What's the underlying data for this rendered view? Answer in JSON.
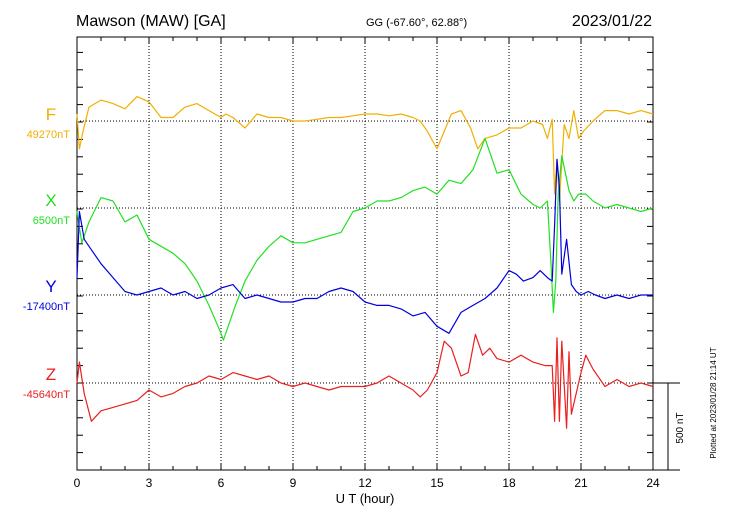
{
  "header": {
    "station": "Mawson (MAW)  [GA]",
    "coords": "GG (-67.60°,  62.88°)",
    "date": "2023/01/22"
  },
  "footer": {
    "plotted": "Plotted at 2023/01/28 21:14 UT"
  },
  "chart_data": {
    "type": "line",
    "title": "Mawson (MAW)  [GA]",
    "xlabel": "U T (hour)",
    "ylabel": "",
    "xlim": [
      0,
      24
    ],
    "x_ticks": [
      "0",
      "3",
      "6",
      "9",
      "12",
      "15",
      "18",
      "21",
      "24"
    ],
    "scale_bar_label": "500 nT",
    "scale_bar_nT": 500,
    "grid": "dotted vertical every 3 h; dotted baseline per component",
    "series": [
      {
        "name": "F",
        "baseline_label": "49270nT",
        "baseline_nT": 49270,
        "color": "#f0b000",
        "x": [
          0,
          0.1,
          0.25,
          0.5,
          1,
          1.5,
          2,
          2.5,
          3,
          3.5,
          4,
          4.5,
          5,
          5.5,
          6,
          6.2,
          6.5,
          7,
          7.5,
          8,
          8.5,
          9,
          9.5,
          10,
          10.5,
          11,
          11.5,
          12,
          12.5,
          13,
          13.5,
          14,
          14.3,
          14.6,
          15,
          15.3,
          15.6,
          16,
          16.4,
          16.7,
          17,
          17.5,
          18,
          18.5,
          19,
          19.4,
          19.6,
          19.8,
          19.9,
          20.0,
          20.1,
          20.3,
          20.5,
          20.7,
          20.9,
          21.1,
          21.5,
          22,
          22.5,
          23,
          23.5,
          24
        ],
        "values": [
          40,
          -160,
          -60,
          80,
          120,
          100,
          70,
          140,
          110,
          20,
          20,
          80,
          100,
          60,
          20,
          40,
          20,
          -40,
          40,
          20,
          20,
          0,
          0,
          10,
          20,
          20,
          30,
          40,
          40,
          30,
          40,
          20,
          0,
          -60,
          -160,
          -60,
          40,
          60,
          -40,
          -160,
          -100,
          -80,
          -40,
          -40,
          0,
          -20,
          -100,
          10,
          -420,
          -220,
          -460,
          -20,
          -100,
          60,
          -100,
          -60,
          0,
          60,
          60,
          40,
          60,
          40
        ]
      },
      {
        "name": "X",
        "baseline_label": "6500nT",
        "baseline_nT": 6500,
        "color": "#22e022",
        "x": [
          0,
          0.2,
          0.5,
          1,
          1.5,
          2,
          2.5,
          3,
          3.5,
          4,
          4.5,
          5,
          5.5,
          6,
          6.1,
          6.3,
          6.6,
          7,
          7.5,
          8,
          8.5,
          9,
          9.5,
          10,
          10.5,
          11,
          11.5,
          12,
          12.5,
          13,
          13.5,
          14,
          14.5,
          15,
          15.5,
          16,
          16.5,
          17,
          17.5,
          18,
          18.5,
          19,
          19.3,
          19.6,
          19.75,
          19.85,
          19.95,
          20.05,
          20.2,
          20.5,
          20.7,
          20.9,
          21.2,
          21.5,
          22,
          22.5,
          23,
          23.5,
          24
        ],
        "values": [
          -20,
          -200,
          -80,
          60,
          40,
          -80,
          -40,
          -180,
          -220,
          -260,
          -320,
          -420,
          -560,
          -720,
          -760,
          -680,
          -560,
          -420,
          -300,
          -220,
          -160,
          -200,
          -200,
          -180,
          -160,
          -140,
          -20,
          0,
          40,
          40,
          60,
          100,
          120,
          80,
          160,
          140,
          220,
          400,
          200,
          220,
          80,
          20,
          0,
          40,
          -320,
          -600,
          -420,
          80,
          300,
          100,
          40,
          80,
          80,
          40,
          0,
          20,
          0,
          -20,
          0
        ]
      },
      {
        "name": "Y",
        "baseline_label": "-17400nT",
        "baseline_nT": -17400,
        "color": "#0000dd",
        "x": [
          0,
          0.1,
          0.3,
          0.6,
          1,
          1.5,
          2,
          2.5,
          3,
          3.5,
          4,
          4.5,
          5,
          5.5,
          6,
          6.5,
          7,
          7.5,
          8,
          8.5,
          9,
          9.5,
          10,
          10.5,
          11,
          11.5,
          12,
          12.5,
          13,
          13.5,
          14,
          14.5,
          15,
          15.5,
          16,
          16.5,
          17,
          17.5,
          18,
          18.3,
          18.6,
          19,
          19.3,
          19.6,
          19.8,
          19.9,
          20.0,
          20.1,
          20.2,
          20.4,
          20.6,
          20.8,
          21,
          21.3,
          21.6,
          22,
          22.5,
          23,
          23.5,
          24
        ],
        "values": [
          100,
          480,
          320,
          260,
          180,
          100,
          20,
          0,
          20,
          40,
          0,
          20,
          -20,
          0,
          40,
          60,
          -20,
          0,
          -20,
          -40,
          -40,
          -20,
          -20,
          20,
          40,
          20,
          -40,
          -60,
          -60,
          -80,
          -120,
          -100,
          -180,
          -220,
          -100,
          -60,
          -20,
          40,
          140,
          120,
          80,
          100,
          140,
          100,
          80,
          400,
          780,
          620,
          120,
          320,
          60,
          20,
          0,
          20,
          0,
          -20,
          0,
          -20,
          0,
          0
        ]
      },
      {
        "name": "Z",
        "baseline_label": "-45640nT",
        "baseline_nT": -45640,
        "color": "#e82020",
        "x": [
          0,
          0.1,
          0.3,
          0.6,
          1,
          1.5,
          2,
          2.5,
          3,
          3.5,
          4,
          4.5,
          5,
          5.5,
          6,
          6.5,
          7,
          7.5,
          8,
          8.5,
          9,
          9.5,
          10,
          10.5,
          11,
          11.5,
          12,
          12.5,
          13,
          13.5,
          14,
          14.3,
          14.6,
          15,
          15.3,
          15.6,
          16,
          16.3,
          16.6,
          16.9,
          17.2,
          17.5,
          18,
          18.5,
          19,
          19.5,
          19.8,
          19.9,
          20.0,
          20.1,
          20.2,
          20.4,
          20.5,
          20.6,
          20.8,
          21.0,
          21.2,
          21.5,
          22,
          22.5,
          23,
          23.5,
          24
        ],
        "values": [
          0,
          120,
          -60,
          -220,
          -160,
          -140,
          -120,
          -100,
          -40,
          -80,
          -60,
          -20,
          0,
          40,
          20,
          60,
          40,
          20,
          40,
          0,
          -20,
          0,
          -20,
          -40,
          -20,
          -20,
          -20,
          0,
          40,
          0,
          -40,
          -80,
          -40,
          60,
          240,
          200,
          40,
          60,
          280,
          160,
          200,
          140,
          120,
          160,
          120,
          100,
          100,
          -220,
          260,
          -220,
          240,
          -260,
          180,
          -180,
          -60,
          60,
          160,
          80,
          -20,
          20,
          -20,
          0,
          -20
        ]
      }
    ]
  }
}
